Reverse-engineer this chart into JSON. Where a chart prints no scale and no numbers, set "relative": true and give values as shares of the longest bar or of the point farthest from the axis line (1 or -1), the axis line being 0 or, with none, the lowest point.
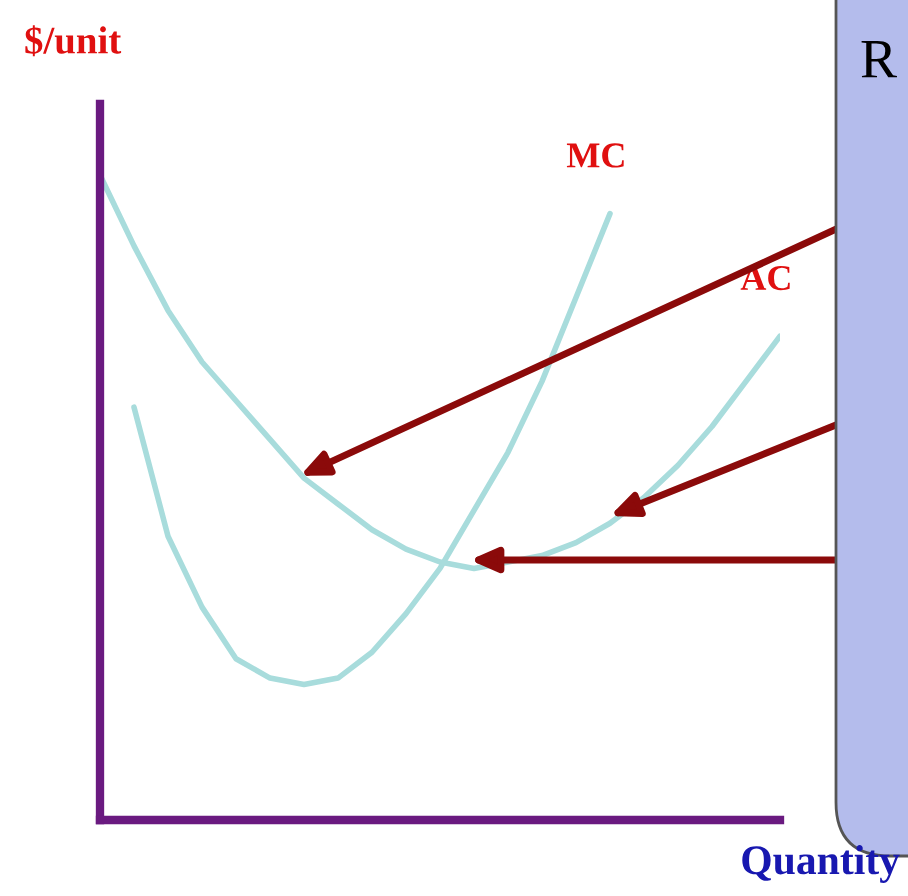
{
  "chart_data": {
    "type": "line",
    "relative": true,
    "xlabel": "Quantity",
    "ylabel": "$/unit",
    "categories": [
      null,
      null,
      null,
      null,
      null,
      null,
      null,
      null,
      null,
      null,
      null,
      null,
      null,
      null,
      null,
      null,
      null,
      null,
      null,
      null,
      null
    ],
    "series": [
      {
        "name": "AC",
        "color": "#a8dcdc",
        "values": [
          1.0,
          0.89,
          0.79,
          0.71,
          0.65,
          0.59,
          0.53,
          0.49,
          0.45,
          0.42,
          0.4,
          0.39,
          0.4,
          0.41,
          0.43,
          0.46,
          0.5,
          0.55,
          0.61,
          0.68,
          0.75
        ]
      },
      {
        "name": "MC",
        "color": "#a8dcdc",
        "values": [
          null,
          0.64,
          0.44,
          0.33,
          0.25,
          0.22,
          0.21,
          0.22,
          0.26,
          0.32,
          0.39,
          0.48,
          0.57,
          0.68,
          0.81,
          0.94,
          null,
          null,
          null,
          null,
          null
        ]
      }
    ],
    "annotations": [
      "R"
    ],
    "legend": false,
    "marker": "none",
    "line_style": "solid"
  }
}
